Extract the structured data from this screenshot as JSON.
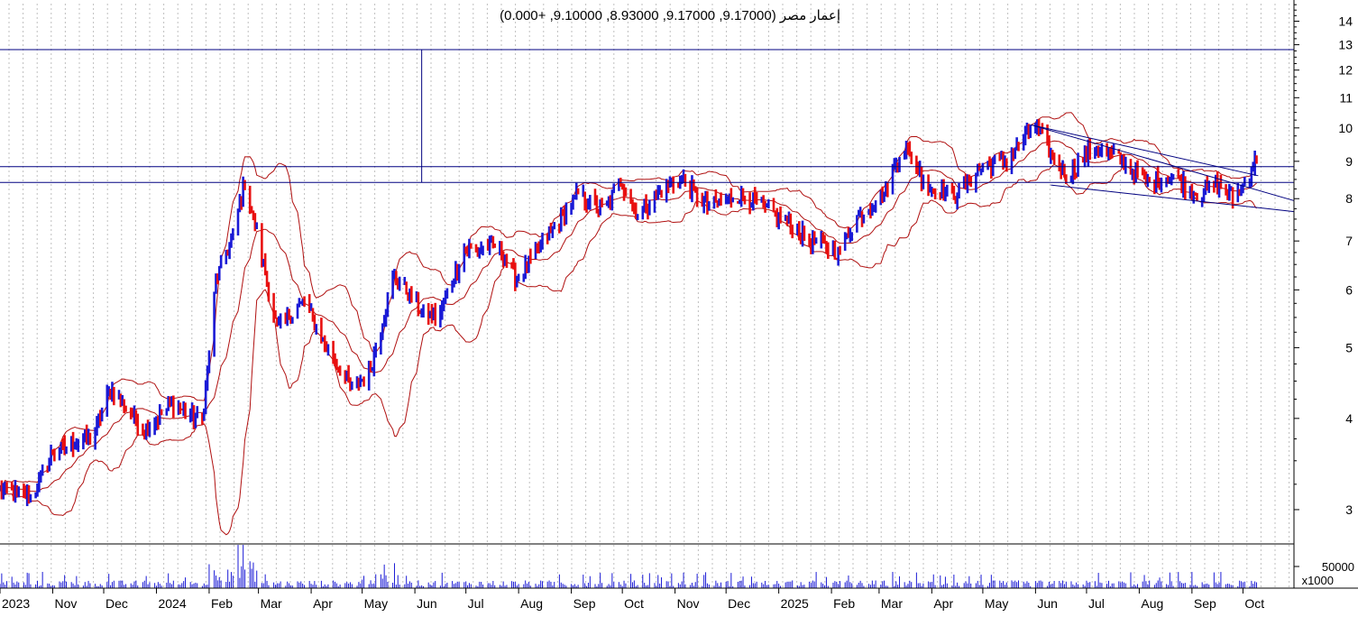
{
  "header": {
    "instrument": "إعمار مصر",
    "ohlc_text": "(9.17000, 9.17000, 8.93000, 9.10000, +0.000)"
  },
  "colors": {
    "up_bar": "#1a1ad6",
    "down_bar": "#e81010",
    "bollinger": "#b01010",
    "hline": "#000080",
    "trendline": "#000080",
    "grid": "#bfbfbf",
    "axis": "#000000"
  },
  "chart_data": [
    {
      "type": "ohlc",
      "scale": "log",
      "ylim": [
        2.7,
        14.8
      ],
      "y_ticks": [
        3,
        4,
        5,
        6,
        7,
        8,
        9,
        10,
        11,
        12,
        13,
        14
      ],
      "x_labels": [
        "2023",
        "Nov",
        "Dec",
        "2024",
        "Feb",
        "Mar",
        "Apr",
        "May",
        "Jun",
        "Jul",
        "Aug",
        "Sep",
        "Oct",
        "Nov",
        "Dec",
        "2025",
        "Feb",
        "Mar",
        "Apr",
        "May",
        "Jun",
        "Jul",
        "Aug",
        "Sep",
        "Oct"
      ],
      "x_start": "2023-10-01",
      "x_end": "2025-10-31",
      "last_bar": {
        "open": 9.17,
        "high": 9.17,
        "low": 8.93,
        "close": 9.1,
        "change": 0.0
      },
      "anchors": [
        [
          "2023-10-01",
          3.2
        ],
        [
          "2023-10-20",
          3.12
        ],
        [
          "2023-11-01",
          3.6
        ],
        [
          "2023-11-25",
          3.78
        ],
        [
          "2023-12-05",
          4.4
        ],
        [
          "2023-12-25",
          3.85
        ],
        [
          "2024-01-10",
          4.18
        ],
        [
          "2024-01-28",
          3.95
        ],
        [
          "2024-02-05",
          6.2
        ],
        [
          "2024-02-15",
          7.1
        ],
        [
          "2024-02-22",
          8.5
        ],
        [
          "2024-03-01",
          7.0
        ],
        [
          "2024-03-12",
          5.3
        ],
        [
          "2024-03-28",
          5.8
        ],
        [
          "2024-04-10",
          5.0
        ],
        [
          "2024-04-25",
          4.4
        ],
        [
          "2024-05-05",
          4.6
        ],
        [
          "2024-05-20",
          6.3
        ],
        [
          "2024-06-05",
          5.6
        ],
        [
          "2024-06-15",
          5.5
        ],
        [
          "2024-06-30",
          6.8
        ],
        [
          "2024-07-20",
          6.9
        ],
        [
          "2024-07-31",
          6.2
        ],
        [
          "2024-08-20",
          7.2
        ],
        [
          "2024-09-05",
          8.1
        ],
        [
          "2024-09-20",
          7.7
        ],
        [
          "2024-09-30",
          8.5
        ],
        [
          "2024-10-10",
          7.6
        ],
        [
          "2024-10-25",
          8.25
        ],
        [
          "2024-11-05",
          8.5
        ],
        [
          "2024-11-20",
          7.8
        ],
        [
          "2024-12-10",
          8.1
        ],
        [
          "2024-12-30",
          7.6
        ],
        [
          "2025-01-20",
          7.0
        ],
        [
          "2025-02-05",
          6.75
        ],
        [
          "2025-02-15",
          7.5
        ],
        [
          "2025-03-05",
          8.2
        ],
        [
          "2025-03-15",
          9.5
        ],
        [
          "2025-03-30",
          8.3
        ],
        [
          "2025-04-15",
          8.1
        ],
        [
          "2025-04-30",
          8.8
        ],
        [
          "2025-05-15",
          9.0
        ],
        [
          "2025-05-31",
          10.1
        ],
        [
          "2025-06-10",
          9.2
        ],
        [
          "2025-06-20",
          8.6
        ],
        [
          "2025-07-05",
          9.4
        ],
        [
          "2025-07-20",
          9.1
        ],
        [
          "2025-08-05",
          8.4
        ],
        [
          "2025-08-20",
          8.6
        ],
        [
          "2025-09-05",
          8.1
        ],
        [
          "2025-09-15",
          8.4
        ],
        [
          "2025-09-25",
          8.0
        ],
        [
          "2025-10-02",
          8.4
        ],
        [
          "2025-10-07",
          8.9
        ],
        [
          "2025-10-10",
          9.1
        ]
      ],
      "hlines": [
        12.8,
        8.85,
        8.42
      ],
      "vline": {
        "date": "2024-06-05",
        "from": 8.42,
        "to": 12.8
      },
      "trendlines": [
        {
          "from": [
            "2025-05-29",
            10.1
          ],
          "to": [
            "2025-10-31",
            7.95
          ]
        },
        {
          "from": [
            "2025-05-29",
            10.1
          ],
          "to": [
            "2025-10-10",
            8.6
          ]
        },
        {
          "from": [
            "2025-06-10",
            8.35
          ],
          "to": [
            "2025-10-31",
            7.68
          ]
        }
      ],
      "grid": true
    },
    {
      "type": "bar",
      "name": "volume",
      "ytick_label": "50000",
      "unit_label": "x1000",
      "ymax": 100000
    }
  ]
}
